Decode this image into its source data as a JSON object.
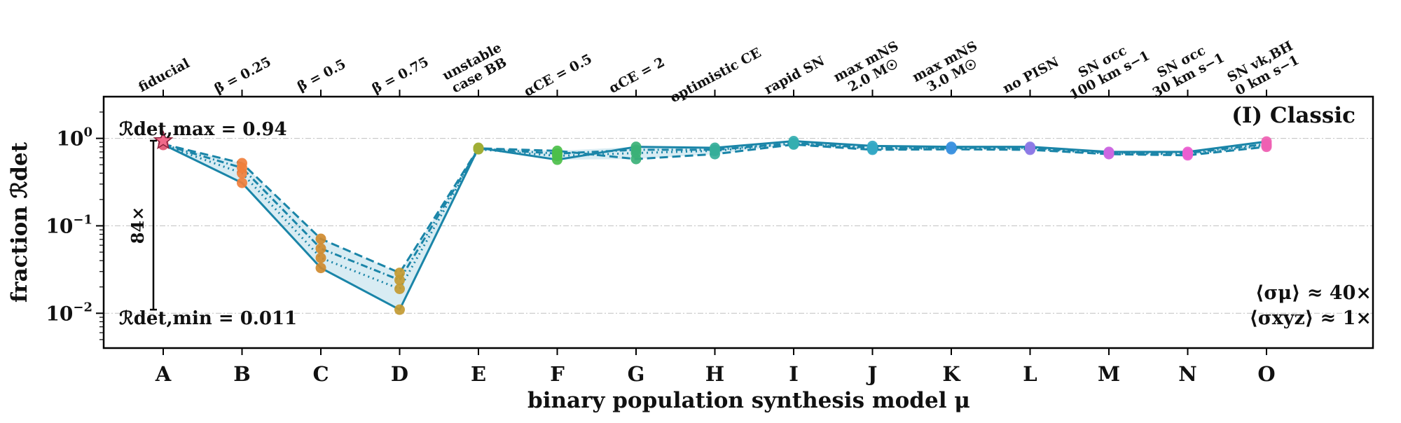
{
  "chart_data": {
    "type": "line",
    "title": "",
    "panel_label": "(I) Classic",
    "xlabel": "binary population synthesis model μ",
    "ylabel": "fraction ℛdet",
    "y_scale": "log",
    "ylim": [
      0.004,
      3
    ],
    "yticks": [
      {
        "value": 1.0,
        "base": "10",
        "exp": "0"
      },
      {
        "value": 0.1,
        "base": "10",
        "exp": "−1"
      },
      {
        "value": 0.01,
        "base": "10",
        "exp": "−2"
      }
    ],
    "grid": "horizontal dash-dot",
    "categories": [
      "A",
      "B",
      "C",
      "D",
      "E",
      "F",
      "G",
      "H",
      "I",
      "J",
      "K",
      "L",
      "M",
      "N",
      "O"
    ],
    "top_labels": [
      [
        "fiducial"
      ],
      [
        "β = 0.25"
      ],
      [
        "β = 0.5"
      ],
      [
        "β = 0.75"
      ],
      [
        "unstable",
        "case BB"
      ],
      [
        "αCE = 0.5"
      ],
      [
        "αCE = 2"
      ],
      [
        "optimistic CE"
      ],
      [
        "rapid SN"
      ],
      [
        "max mNS",
        "2.0 M☉"
      ],
      [
        "max mNS",
        "3.0 M☉"
      ],
      [
        "no PISN"
      ],
      [
        "SN σcc",
        "100 km s−1"
      ],
      [
        "SN σcc",
        "30 km s−1"
      ],
      [
        "SN vk,BH",
        "0 km s−1"
      ]
    ],
    "marker_colors": [
      "#e2627e",
      "#f07f3c",
      "#cf8a2e",
      "#c39a32",
      "#9fae35",
      "#4cbf4a",
      "#3bb177",
      "#35ae99",
      "#33aeb0",
      "#33a8c4",
      "#3d93e0",
      "#8d79e6",
      "#cc68e2",
      "#ea5fd0",
      "#ef61b3"
    ],
    "line_color": "#1a85a8",
    "series": [
      {
        "style": "solid",
        "values": [
          0.85,
          0.31,
          0.033,
          0.011,
          0.78,
          0.57,
          0.8,
          0.78,
          0.93,
          0.82,
          0.8,
          0.8,
          0.7,
          0.7,
          0.92
        ]
      },
      {
        "style": "dashed",
        "values": [
          0.86,
          0.52,
          0.071,
          0.029,
          0.77,
          0.72,
          0.58,
          0.66,
          0.85,
          0.74,
          0.75,
          0.74,
          0.66,
          0.64,
          0.8
        ]
      },
      {
        "style": "dotted",
        "values": [
          0.84,
          0.4,
          0.043,
          0.019,
          0.75,
          0.63,
          0.68,
          0.72,
          0.87,
          0.76,
          0.77,
          0.76,
          0.67,
          0.66,
          0.83
        ]
      },
      {
        "style": "dashdot",
        "values": [
          0.85,
          0.46,
          0.055,
          0.024,
          0.76,
          0.67,
          0.74,
          0.74,
          0.88,
          0.78,
          0.78,
          0.78,
          0.69,
          0.68,
          0.86
        ]
      }
    ],
    "fiducial_star": {
      "category": "A",
      "value": 0.94
    },
    "range_annotation": {
      "max_label": "ℛdet,max = 0.94",
      "min_label": "ℛdet,min = 0.011",
      "max": 0.94,
      "min": 0.011,
      "factor_label": "84×"
    },
    "stats": [
      "⟨σμ⟩ ≈ 40×",
      "⟨σxyz⟩ ≈ 1×"
    ]
  }
}
